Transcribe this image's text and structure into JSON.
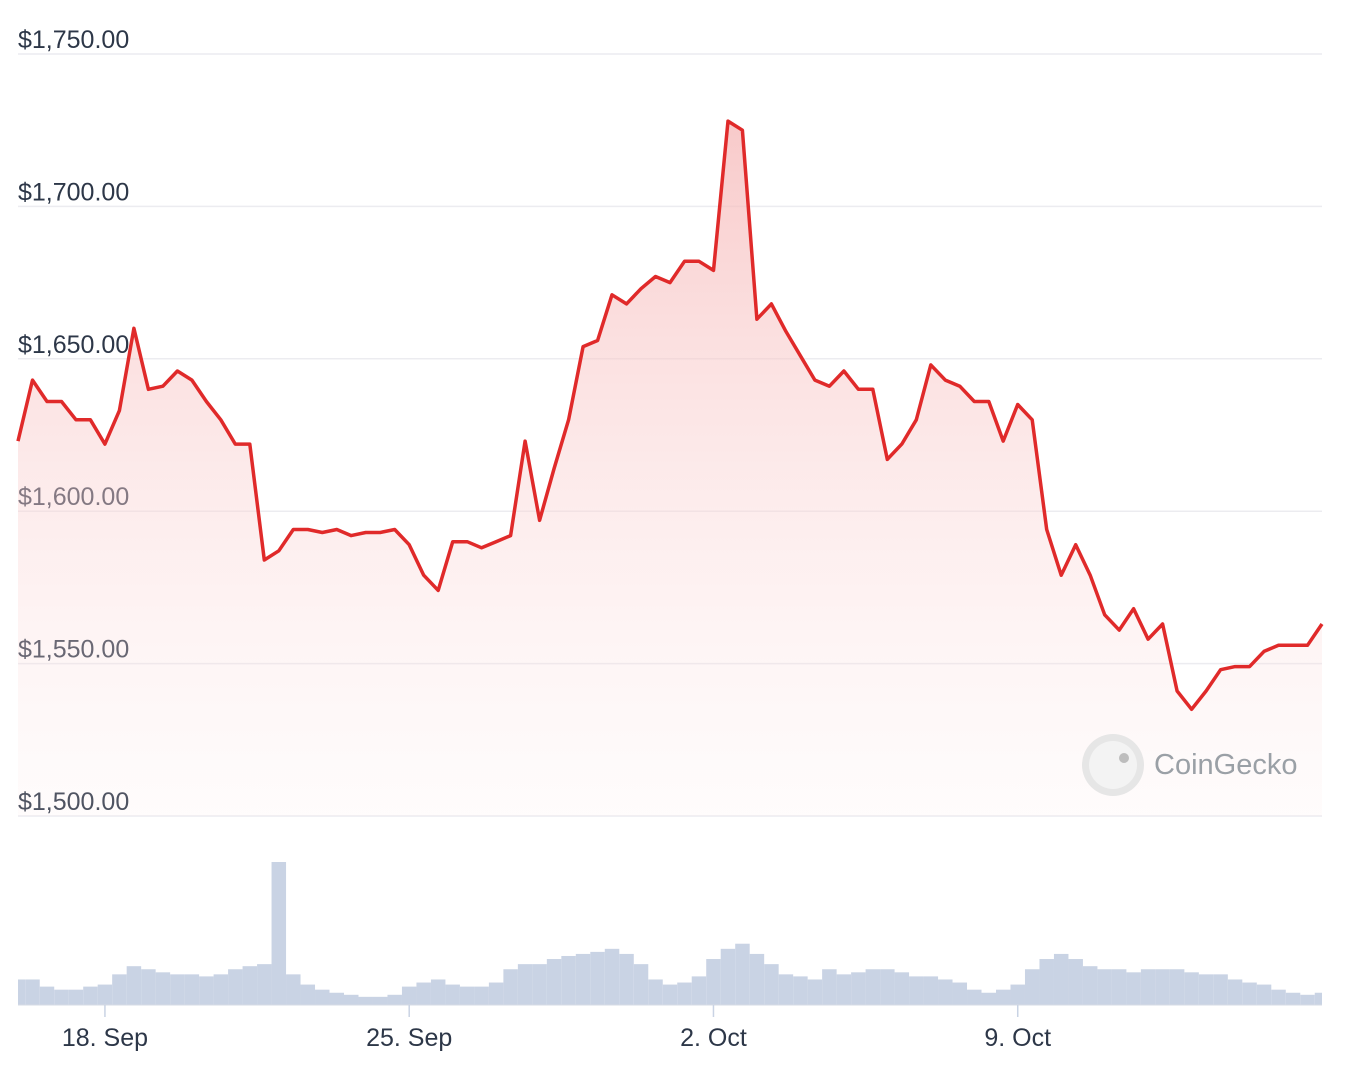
{
  "chart_data": {
    "type": "line",
    "color": "#e02a2a",
    "ylim": [
      1500,
      1750
    ],
    "yticks": [
      {
        "value": 1500,
        "label": "$1,500.00"
      },
      {
        "value": 1550,
        "label": "$1,550.00"
      },
      {
        "value": 1600,
        "label": "$1,600.00"
      },
      {
        "value": 1650,
        "label": "$1,650.00"
      },
      {
        "value": 1700,
        "label": "$1,700.00"
      },
      {
        "value": 1750,
        "label": "$1,750.00"
      }
    ],
    "grid": true,
    "categories": [
      null,
      null,
      null,
      null,
      null,
      null,
      "18. Sep",
      null,
      null,
      null,
      null,
      null,
      null,
      null,
      null,
      null,
      null,
      null,
      null,
      null,
      null,
      null,
      null,
      null,
      null,
      null,
      null,
      "25. Sep",
      null,
      null,
      null,
      null,
      null,
      null,
      null,
      null,
      null,
      null,
      null,
      null,
      null,
      null,
      null,
      null,
      null,
      null,
      null,
      null,
      "2. Oct",
      null,
      null,
      null,
      null,
      null,
      null,
      null,
      null,
      null,
      null,
      null,
      null,
      null,
      null,
      null,
      null,
      null,
      null,
      null,
      null,
      "9. Oct",
      null,
      null,
      null,
      null,
      null,
      null,
      null,
      null,
      null,
      null,
      null,
      null,
      null,
      null,
      null,
      null,
      null,
      null,
      null,
      null,
      null
    ],
    "values": [
      1623,
      1643,
      1636,
      1636,
      1630,
      1630,
      1622,
      1633,
      1660,
      1640,
      1641,
      1646,
      1643,
      1636,
      1630,
      1622,
      1622,
      1584,
      1587,
      1594,
      1594,
      1593,
      1594,
      1592,
      1593,
      1593,
      1594,
      1589,
      1579,
      1574,
      1590,
      1590,
      1588,
      1590,
      1592,
      1623,
      1597,
      1614,
      1630,
      1654,
      1656,
      1671,
      1668,
      1673,
      1677,
      1675,
      1682,
      1682,
      1679,
      1728,
      1725,
      1663,
      1668,
      1659,
      1651,
      1643,
      1641,
      1646,
      1640,
      1640,
      1617,
      1622,
      1630,
      1648,
      1643,
      1641,
      1636,
      1636,
      1623,
      1635,
      1630,
      1594,
      1579,
      1589,
      1579,
      1566,
      1561,
      1568,
      1558,
      1563,
      1541,
      1535,
      1541,
      1548,
      1549,
      1549,
      1554,
      1556,
      1556,
      1556,
      1563
    ],
    "volume": {
      "color": "#c9d3e4",
      "values": [
        25,
        25,
        18,
        15,
        15,
        18,
        20,
        30,
        38,
        35,
        32,
        30,
        30,
        28,
        30,
        35,
        38,
        40,
        140,
        30,
        20,
        15,
        12,
        10,
        8,
        8,
        10,
        18,
        22,
        25,
        20,
        18,
        18,
        22,
        35,
        40,
        40,
        45,
        48,
        50,
        52,
        55,
        50,
        40,
        25,
        20,
        22,
        28,
        45,
        55,
        60,
        50,
        40,
        30,
        28,
        25,
        35,
        30,
        32,
        35,
        35,
        32,
        28,
        28,
        25,
        22,
        15,
        12,
        15,
        20,
        35,
        45,
        50,
        45,
        38,
        35,
        35,
        32,
        35,
        35,
        35,
        32,
        30,
        30,
        25,
        22,
        20,
        15,
        12,
        10,
        12
      ]
    },
    "watermark": "CoinGecko"
  }
}
